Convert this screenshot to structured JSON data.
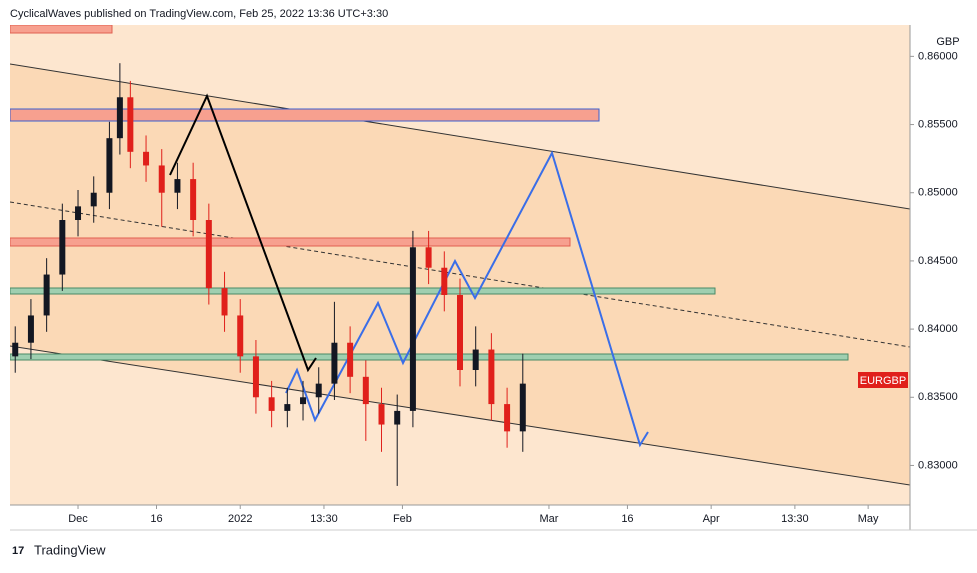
{
  "header": "CyclicalWaves published on TradingView.com, Feb 25, 2022 13:36 UTC+3:30",
  "currency": "GBP",
  "symbol": "EURGBP",
  "footer": "TradingView",
  "chart_data": {
    "type": "candlestick",
    "x": [
      -12,
      -9,
      -6,
      -3,
      0,
      3,
      6,
      8,
      10,
      13,
      16,
      19,
      22,
      25,
      28,
      31,
      34,
      37,
      40,
      43,
      46,
      49,
      52,
      55,
      58,
      61,
      64,
      67,
      70,
      73,
      76,
      79,
      82,
      85
    ],
    "open": [
      0.838,
      0.839,
      0.841,
      0.844,
      0.848,
      0.849,
      0.85,
      0.854,
      0.857,
      0.853,
      0.852,
      0.85,
      0.851,
      0.848,
      0.843,
      0.841,
      0.838,
      0.835,
      0.834,
      0.8345,
      0.835,
      0.836,
      0.839,
      0.8365,
      0.8345,
      0.833,
      0.834,
      0.846,
      0.8445,
      0.8425,
      0.837,
      0.8385,
      0.8345,
      0.8325
    ],
    "high": [
      0.8402,
      0.8422,
      0.8452,
      0.8492,
      0.8502,
      0.8512,
      0.8552,
      0.8595,
      0.8582,
      0.8542,
      0.8532,
      0.8522,
      0.8522,
      0.8492,
      0.8442,
      0.8422,
      0.8392,
      0.8362,
      0.8357,
      0.8362,
      0.8372,
      0.842,
      0.8402,
      0.8377,
      0.8357,
      0.8352,
      0.8472,
      0.8472,
      0.8457,
      0.8437,
      0.8402,
      0.8397,
      0.8357,
      0.8382
    ],
    "low": [
      0.8368,
      0.8378,
      0.8398,
      0.8428,
      0.8468,
      0.8478,
      0.8488,
      0.8528,
      0.8518,
      0.8508,
      0.8475,
      0.8488,
      0.8468,
      0.8418,
      0.8398,
      0.8368,
      0.8338,
      0.8328,
      0.8328,
      0.8333,
      0.8338,
      0.8348,
      0.8353,
      0.8318,
      0.831,
      0.8285,
      0.8328,
      0.8433,
      0.8413,
      0.8358,
      0.8358,
      0.8333,
      0.8313,
      0.831
    ],
    "close": [
      0.839,
      0.841,
      0.844,
      0.848,
      0.849,
      0.85,
      0.854,
      0.857,
      0.853,
      0.852,
      0.85,
      0.851,
      0.848,
      0.843,
      0.841,
      0.838,
      0.835,
      0.834,
      0.8345,
      0.835,
      0.836,
      0.839,
      0.8365,
      0.8345,
      0.833,
      0.834,
      0.846,
      0.8445,
      0.8425,
      0.837,
      0.8385,
      0.8345,
      0.8325,
      0.836
    ],
    "up_color": "#131722",
    "down_color": "#e0201b",
    "xlim": [
      -13,
      159
    ],
    "xticks": [
      {
        "value": 0,
        "label": "Dec"
      },
      {
        "value": 15,
        "label": "16"
      },
      {
        "value": 31,
        "label": "2022"
      },
      {
        "value": 47,
        "label": "13:30"
      },
      {
        "value": 62,
        "label": "Feb"
      },
      {
        "value": 90,
        "label": "Mar"
      },
      {
        "value": 105,
        "label": "16"
      },
      {
        "value": 121,
        "label": "Apr"
      },
      {
        "value": 137,
        "label": "13:30"
      },
      {
        "value": 151,
        "label": "May"
      }
    ],
    "ylim": [
      0.8271,
      0.8623
    ],
    "yticks": [
      {
        "value": 0.83,
        "label": "0.83000"
      },
      {
        "value": 0.835,
        "label": "0.83500"
      },
      {
        "value": 0.84,
        "label": "0.84000"
      },
      {
        "value": 0.845,
        "label": "0.84500"
      },
      {
        "value": 0.85,
        "label": "0.85000"
      },
      {
        "value": 0.855,
        "label": "0.85500"
      },
      {
        "value": 0.86,
        "label": "0.86000"
      }
    ]
  }
}
